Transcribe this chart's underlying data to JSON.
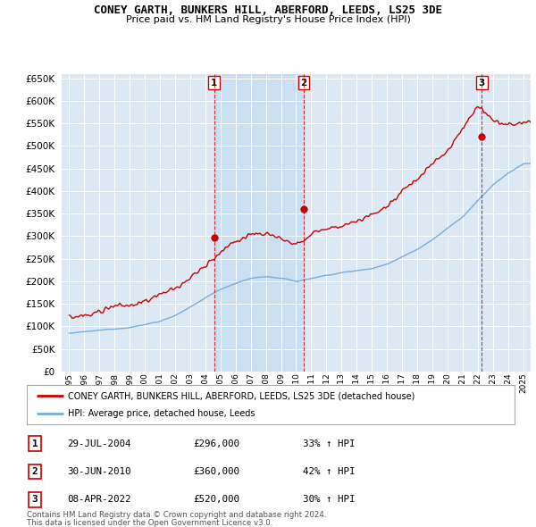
{
  "title": "CONEY GARTH, BUNKERS HILL, ABERFORD, LEEDS, LS25 3DE",
  "subtitle": "Price paid vs. HM Land Registry's House Price Index (HPI)",
  "plot_bg_color": "#dce9f5",
  "ylim": [
    0,
    660000
  ],
  "yticks": [
    0,
    50000,
    100000,
    150000,
    200000,
    250000,
    300000,
    350000,
    400000,
    450000,
    500000,
    550000,
    600000,
    650000
  ],
  "xlim_start": 1994.5,
  "xlim_end": 2025.5,
  "xticks": [
    1995,
    1996,
    1997,
    1998,
    1999,
    2000,
    2001,
    2002,
    2003,
    2004,
    2005,
    2006,
    2007,
    2008,
    2009,
    2010,
    2011,
    2012,
    2013,
    2014,
    2015,
    2016,
    2017,
    2018,
    2019,
    2020,
    2021,
    2022,
    2023,
    2024,
    2025
  ],
  "red_line_color": "#cc0000",
  "blue_line_color": "#7aacdb",
  "sale_marker_color": "#cc0000",
  "sale_marker_size": 6,
  "purchases": [
    {
      "date": 2004.57,
      "price": 296000,
      "label": "1"
    },
    {
      "date": 2010.5,
      "price": 360000,
      "label": "2"
    },
    {
      "date": 2022.27,
      "price": 520000,
      "label": "3"
    }
  ],
  "legend_red_label": "CONEY GARTH, BUNKERS HILL, ABERFORD, LEEDS, LS25 3DE (detached house)",
  "legend_blue_label": "HPI: Average price, detached house, Leeds",
  "table_rows": [
    {
      "num": "1",
      "date": "29-JUL-2004",
      "price": "£296,000",
      "pct": "33% ↑ HPI"
    },
    {
      "num": "2",
      "date": "30-JUN-2010",
      "price": "£360,000",
      "pct": "42% ↑ HPI"
    },
    {
      "num": "3",
      "date": "08-APR-2022",
      "price": "£520,000",
      "pct": "30% ↑ HPI"
    }
  ],
  "footnote1": "Contains HM Land Registry data © Crown copyright and database right 2024.",
  "footnote2": "This data is licensed under the Open Government Licence v3.0.",
  "hpi_base": [
    85000,
    87000,
    89500,
    93000,
    98000,
    104000,
    112000,
    125000,
    142000,
    163000,
    182000,
    196000,
    206000,
    210000,
    205000,
    198000,
    205000,
    212000,
    218000,
    222000,
    228000,
    238000,
    255000,
    272000,
    295000,
    320000,
    345000,
    380000,
    415000,
    440000,
    460000
  ],
  "prop_base": [
    120000,
    123000,
    127000,
    133000,
    140000,
    150000,
    163000,
    180000,
    205000,
    235000,
    265000,
    285000,
    300000,
    305000,
    290000,
    280000,
    300000,
    310000,
    320000,
    330000,
    345000,
    365000,
    395000,
    425000,
    460000,
    490000,
    540000,
    590000,
    555000,
    545000,
    550000
  ]
}
